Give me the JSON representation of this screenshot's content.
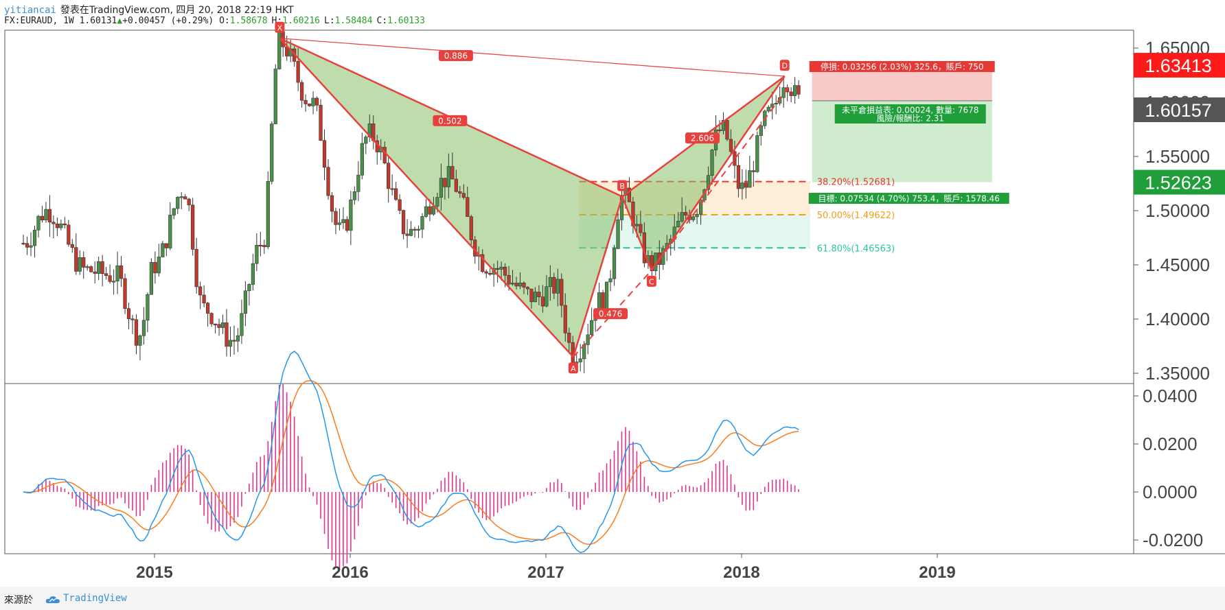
{
  "header": {
    "user": "yitiancai",
    "published": "發表在TradingView.com, 四月 20, 2018 22:19 HKT",
    "symbol": "FX:EURAUD, 1W",
    "last": "1.60131",
    "change": "+0.00457 (+0.29%)",
    "open_label": "O:",
    "open": "1.58678",
    "high_label": "H:",
    "high": "1.60216",
    "low_label": "L:",
    "low": "1.58484",
    "close_label": "C:",
    "close": "1.60133"
  },
  "footer": {
    "source_label": "來源於",
    "brand": "TradingView"
  },
  "colors": {
    "up": "#4a8f4a",
    "down": "#c0392b",
    "pattern": "#e8403c",
    "pattern_fill": "#8bbf6a",
    "macd": "#2196f3",
    "signal": "#ff7a1a",
    "hist": "#e0338f"
  },
  "chart_data": {
    "type": "candlestick",
    "price_axis": {
      "min": 1.35,
      "max": 1.65,
      "ticks": [
        "1.35000",
        "1.40000",
        "1.45000",
        "1.50000",
        "1.55000",
        "1.60000",
        "1.65000"
      ]
    },
    "time_axis": {
      "ticks": [
        "2015",
        "2016",
        "2017",
        "2018",
        "2019"
      ]
    },
    "price_labels": {
      "stop": "1.63413",
      "last": "1.60157",
      "target": "1.52623"
    },
    "pattern": {
      "name_points": [
        {
          "label": "X",
          "t": 2015.64,
          "p": 1.659
        },
        {
          "label": "A",
          "t": 2017.14,
          "p": 1.365
        },
        {
          "label": "B",
          "t": 2017.39,
          "p": 1.513
        },
        {
          "label": "C",
          "t": 2017.54,
          "p": 1.445
        },
        {
          "label": "D",
          "t": 2018.22,
          "p": 1.624
        }
      ],
      "ratios": [
        {
          "label": "0.886",
          "t": 2016.54,
          "p": 1.643
        },
        {
          "label": "0.502",
          "t": 2016.51,
          "p": 1.583
        },
        {
          "label": "0.476",
          "t": 2017.33,
          "p": 1.405
        },
        {
          "label": "2.606",
          "t": 2017.8,
          "p": 1.567
        }
      ]
    },
    "fib_levels": [
      {
        "label": "38.20%(1.52681)",
        "value": 1.52681,
        "color": "#e53935"
      },
      {
        "label": "50.00%(1.49622)",
        "value": 1.49622,
        "color": "#f59c1a"
      },
      {
        "label": "61.80%(1.46563)",
        "value": 1.46563,
        "color": "#26c6a0"
      }
    ],
    "position": {
      "stop_text": "停損: 0.03256 (2.03%) 325.6，賬戶: 750",
      "pnl_text": "未平倉損益表: 0.00024, 數量: 7678",
      "rr_text": "風險/報酬比: 2.31",
      "target_text": "目標: 0.07534 (4.70%) 753.4，賬戶: 1578.46",
      "entry": 1.60133,
      "stop": 1.63413,
      "target": 1.52623
    },
    "macd_axis": {
      "min": -0.024,
      "max": 0.042,
      "ticks": [
        "-0.0200",
        "0.0000",
        "0.0200",
        "0.0400"
      ]
    }
  }
}
